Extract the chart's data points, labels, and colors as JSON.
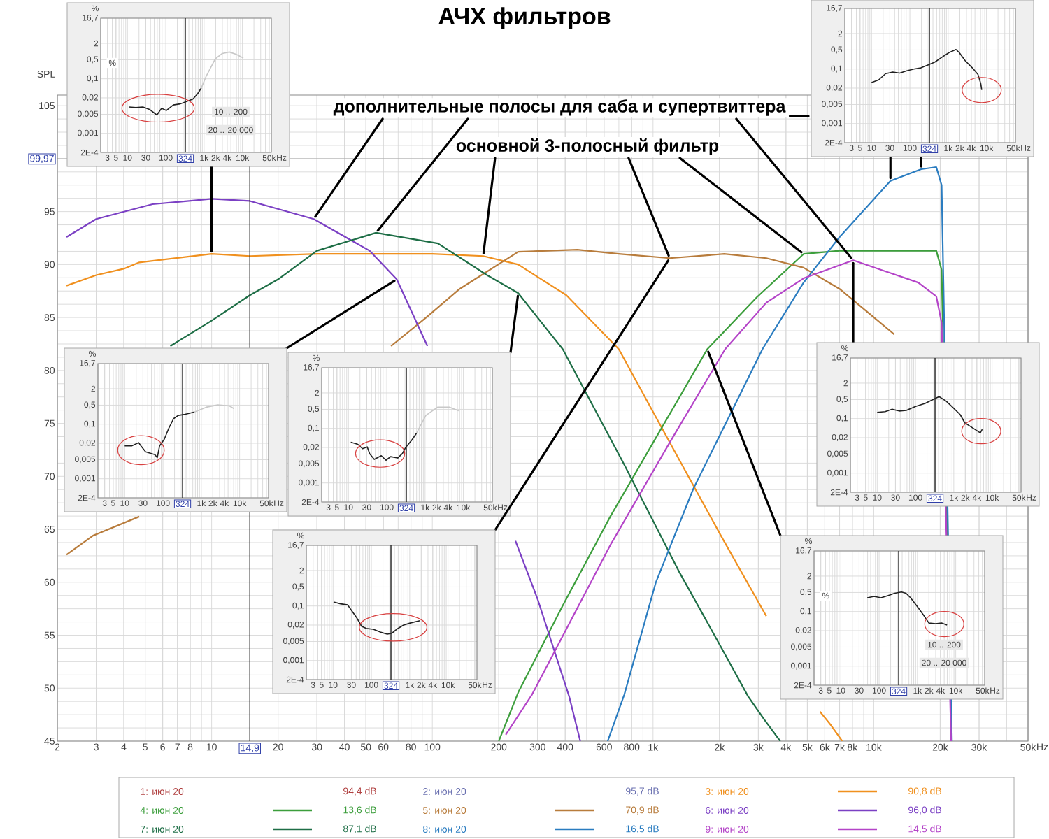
{
  "chart_data": [
    {
      "type": "line",
      "title": "АЧХ фильтров",
      "ylabel": "SPL",
      "xlabel": "Hz",
      "log": "x",
      "xlim": [
        2,
        50000
      ],
      "ylim": [
        45,
        106
      ],
      "xticks": [
        2,
        3,
        4,
        5,
        6,
        7,
        8,
        10,
        20,
        30,
        40,
        50,
        60,
        80,
        100,
        200,
        300,
        400,
        600,
        800,
        {
          "value": 1000,
          "label": "1k"
        },
        {
          "value": 2000,
          "label": "2k"
        },
        {
          "value": 3000,
          "label": "3k"
        },
        {
          "value": 4000,
          "label": "4k"
        },
        {
          "value": 5000,
          "label": "5k"
        },
        {
          "value": 6000,
          "label": "6k"
        },
        {
          "value": 7000,
          "label": "7k"
        },
        {
          "value": 8000,
          "label": "8k"
        },
        {
          "value": 10000,
          "label": "10k"
        },
        {
          "value": 20000,
          "label": "20k"
        },
        {
          "value": 30000,
          "label": "30k"
        },
        {
          "value": 50000,
          "label": "50k"
        }
      ],
      "yticks": [
        45,
        50,
        55,
        60,
        65,
        70,
        75,
        80,
        85,
        90,
        95,
        {
          "value": 100,
          "label": null
        },
        105
      ],
      "grid": true,
      "legend": "bottom",
      "ref_lines": [
        {
          "axis": "x",
          "value": 14.9,
          "label": "14,9",
          "color": "#202020"
        },
        {
          "axis": "y",
          "value": 99.97,
          "label": "99,97",
          "color": "#707070"
        }
      ],
      "annotations": [
        {
          "text": "дополнительные полосы для саба и супертвиттера",
          "x": 29,
          "y": 94.3
        },
        {
          "text": "основной 3-полосный фильтр",
          "x": 170,
          "y": 90.8
        },
        "94,4 dB",
        "95,7 dB",
        "90,8 dB",
        "13,6 dB",
        "70,9 dB",
        "96,0 dB",
        "87,1 dB",
        "16,5 dB",
        "14,5 dB"
      ],
      "series": [
        {
          "name": "1: июн 20",
          "color": "#b04040"
        },
        {
          "name": "2: июн 20",
          "color": "#6a70b0"
        },
        {
          "name": "3: июн 20",
          "color": "#f0901e",
          "x": [
            2.2,
            3,
            4,
            4.7,
            10,
            14.9,
            30,
            100,
            170,
            245,
            405,
            700,
            1190,
            2030,
            3260,
            4500,
            5700,
            6400,
            7200
          ],
          "values": [
            88.0,
            89.0,
            89.6,
            90.2,
            91.0,
            90.8,
            91.0,
            91.0,
            90.8,
            90.0,
            87.1,
            82.0,
            73.2,
            64.4,
            56.8,
            null,
            47.8,
            46.5,
            45.0
          ]
        },
        {
          "name": "4: июн 20",
          "color": "#3c9e3c",
          "x": [
            200,
            245,
            390,
            640,
            1760,
            2950,
            4810,
            7000,
            19200,
            20300,
            22500
          ],
          "values": [
            45.0,
            49.6,
            57.8,
            66.2,
            82.0,
            86.9,
            91.0,
            91.3,
            91.3,
            89.5,
            45.0
          ]
        },
        {
          "name": "5: июн 20",
          "color": "#b87c3c",
          "x": [
            2.2,
            2.9,
            4.7,
            20,
            65,
            95,
            133,
            245,
            454,
            700,
            1190,
            2100,
            3260,
            4810,
            7000,
            9900,
            12400
          ],
          "values": [
            62.6,
            64.4,
            66.2,
            null,
            82.3,
            85.1,
            87.7,
            91.2,
            91.4,
            91.0,
            90.6,
            91.0,
            90.6,
            89.7,
            87.7,
            85.1,
            83.4
          ]
        },
        {
          "name": "6: июн 20",
          "color": "#7b40c4",
          "x": [
            2.2,
            3,
            5.4,
            10,
            14.9,
            29,
            52,
            69,
            95,
            140,
            238,
            300,
            417,
            468
          ],
          "values": [
            92.6,
            94.3,
            95.7,
            96.2,
            96.0,
            94.3,
            91.3,
            88.6,
            82.3,
            null,
            63.9,
            58.4,
            49.2,
            45.0
          ]
        },
        {
          "name": "7: июн 20",
          "color": "#1e6e46",
          "x": [
            6.5,
            10,
            14.9,
            20,
            30,
            55.6,
            106,
            177,
            245,
            390,
            741,
            1320,
            2030,
            2700,
            3200,
            3770
          ],
          "values": [
            82.3,
            84.7,
            87.1,
            88.6,
            91.3,
            93.0,
            92.0,
            89.0,
            87.3,
            82.0,
            71.1,
            60.9,
            53.9,
            49.2,
            47.0,
            45.0
          ]
        },
        {
          "name": "8: июн 20",
          "color": "#2a7cc0",
          "x": [
            623,
            741,
            1030,
            1520,
            3130,
            4810,
            7000,
            11900,
            16400,
            19200,
            20300,
            22600
          ],
          "values": [
            45.0,
            49.4,
            60.0,
            68.8,
            82.0,
            88.3,
            92.6,
            97.9,
            99.0,
            99.2,
            97.5,
            45.0
          ]
        },
        {
          "name": "9: июн 20",
          "color": "#b444c8",
          "x": [
            215,
            283,
            640,
            1190,
            2120,
            3260,
            4810,
            8070,
            15900,
            19200,
            20300,
            22400
          ],
          "values": [
            45.6,
            49.4,
            63.5,
            73.2,
            82.0,
            86.4,
            88.7,
            90.4,
            88.3,
            87.0,
            84.5,
            45.0
          ]
        }
      ]
    },
    {
      "type": "line",
      "ylabel": "%",
      "xlabel": "Hz",
      "log": "xy",
      "xlim": [
        2,
        57000
      ],
      "ylim": [
        0.0002,
        16.7
      ],
      "xticks": [
        3,
        5,
        10,
        30,
        100,
        {
          "value": 1000,
          "label": "1k"
        },
        {
          "value": 2000,
          "label": "2k"
        },
        {
          "value": 4000,
          "label": "4k"
        },
        {
          "value": 10000,
          "label": "10k"
        },
        {
          "value": 50000,
          "label": "50k"
        }
      ],
      "yticks": [
        {
          "value": 0.0002,
          "label": "2E-4"
        },
        {
          "value": 0.001,
          "label": "0,001"
        },
        {
          "value": 0.005,
          "label": "0,005"
        },
        {
          "value": 0.02,
          "label": "0,02"
        },
        {
          "value": 0.1,
          "label": "0,1"
        },
        {
          "value": 0.5,
          "label": "0,5"
        },
        {
          "value": 2,
          "label": "2"
        },
        {
          "value": 16.7,
          "label": "16,7"
        }
      ],
      "grid": true,
      "ref_lines": [
        {
          "axis": "x",
          "value": 324,
          "label": "324",
          "color": "#202020"
        }
      ],
      "annotations": [
        "%",
        "10 .. 200",
        "20 .. 20 000"
      ],
      "series": [
        {
          "color": "#202020",
          "x": [
            10.9,
            16.6,
            25.2,
            38.5,
            58.6,
            77.6,
            103,
            157,
            239,
            364,
            509,
            675,
            845
          ],
          "values": [
            0.0093,
            0.0089,
            0.0093,
            0.0074,
            0.0047,
            0.0083,
            0.0069,
            0.011,
            0.012,
            0.015,
            0.018,
            0.028,
            0.046
          ]
        },
        {
          "color": "#c8c8c8",
          "x": [
            845,
            1120,
            1960,
            2990,
            4560,
            6950,
            10600
          ],
          "values": [
            0.046,
            0.12,
            0.54,
            0.85,
            0.96,
            0.79,
            0.58
          ]
        }
      ]
    },
    {
      "type": "line",
      "xlabel": "Hz",
      "log": "xy",
      "xlim": [
        2,
        57000
      ],
      "ylim": [
        0.0002,
        16.7
      ],
      "xticks": [
        3,
        5,
        10,
        30,
        100,
        {
          "value": 1000,
          "label": "1k"
        },
        {
          "value": 2000,
          "label": "2k"
        },
        {
          "value": 4000,
          "label": "4k"
        },
        {
          "value": 10000,
          "label": "10k"
        },
        {
          "value": 50000,
          "label": "50k"
        }
      ],
      "yticks": [
        {
          "value": 0.0002,
          "label": "2E-4"
        },
        {
          "value": 0.001,
          "label": "0,001"
        },
        {
          "value": 0.005,
          "label": "0,005"
        },
        {
          "value": 0.02,
          "label": "0,02"
        },
        {
          "value": 0.1,
          "label": "0,1"
        },
        {
          "value": 0.5,
          "label": "0,5"
        },
        {
          "value": 2,
          "label": "2"
        },
        {
          "value": 16.7,
          "label": "16,7"
        }
      ],
      "grid": true,
      "ref_lines": [
        {
          "axis": "x",
          "value": 324,
          "label": "324",
          "color": "#202020"
        }
      ],
      "series": [
        {
          "color": "#202020",
          "x": [
            10,
            15.3,
            23.3,
            35.6,
            54.3,
            82.8,
            126,
            193,
            294,
            449,
            685,
            1050,
            1600,
            1950,
            2800,
            4290,
            6000,
            7100,
            7500
          ],
          "values": [
            0.032,
            0.04,
            0.068,
            0.077,
            0.071,
            0.086,
            0.1,
            0.11,
            0.14,
            0.18,
            0.27,
            0.4,
            0.52,
            0.4,
            0.2,
            0.11,
            0.063,
            0.029,
            0.017
          ]
        }
      ]
    },
    {
      "type": "line",
      "ylabel": "%",
      "xlabel": "Hz",
      "log": "xy",
      "xlim": [
        2,
        57000
      ],
      "ylim": [
        0.0002,
        16.7
      ],
      "xticks": [
        3,
        5,
        10,
        30,
        100,
        {
          "value": 1000,
          "label": "1k"
        },
        {
          "value": 2000,
          "label": "2k"
        },
        {
          "value": 4000,
          "label": "4k"
        },
        {
          "value": 10000,
          "label": "10k"
        },
        {
          "value": 50000,
          "label": "50k"
        }
      ],
      "yticks": [
        {
          "value": 0.0002,
          "label": "2E-4"
        },
        {
          "value": 0.001,
          "label": "0,001"
        },
        {
          "value": 0.005,
          "label": "0,005"
        },
        {
          "value": 0.02,
          "label": "0,02"
        },
        {
          "value": 0.1,
          "label": "0,1"
        },
        {
          "value": 0.5,
          "label": "0,5"
        },
        {
          "value": 2,
          "label": "2"
        },
        {
          "value": 16.7,
          "label": "16,7"
        }
      ],
      "grid": true,
      "ref_lines": [
        {
          "axis": "x",
          "value": 324,
          "label": "324",
          "color": "#202020"
        }
      ],
      "series": [
        {
          "color": "#202020",
          "x": [
            10,
            15.2,
            23.2,
            26.6,
            35.2,
            46.6,
            61.6,
            70.9,
            81.5,
            108,
            143,
            189,
            250,
            380,
            665
          ],
          "values": [
            0.016,
            0.016,
            0.021,
            0.016,
            0.0097,
            0.0086,
            0.0077,
            0.0059,
            0.016,
            0.028,
            0.073,
            0.16,
            0.21,
            0.23,
            0.28
          ]
        },
        {
          "color": "#c8c8c8",
          "x": [
            665,
            1340,
            2690,
            5420,
            7160
          ],
          "values": [
            0.28,
            0.42,
            0.51,
            0.47,
            0.37
          ]
        }
      ]
    },
    {
      "type": "line",
      "ylabel": "%",
      "xlabel": "Hz",
      "log": "xy",
      "xlim": [
        2,
        57000
      ],
      "ylim": [
        0.0002,
        16.7
      ],
      "xticks": [
        3,
        5,
        10,
        30,
        100,
        {
          "value": 1000,
          "label": "1k"
        },
        {
          "value": 2000,
          "label": "2k"
        },
        {
          "value": 4000,
          "label": "4k"
        },
        {
          "value": 10000,
          "label": "10k"
        },
        {
          "value": 50000,
          "label": "50k"
        }
      ],
      "yticks": [
        {
          "value": 0.0002,
          "label": "2E-4"
        },
        {
          "value": 0.001,
          "label": "0,001"
        },
        {
          "value": 0.005,
          "label": "0,005"
        },
        {
          "value": 0.02,
          "label": "0,02"
        },
        {
          "value": 0.1,
          "label": "0,1"
        },
        {
          "value": 0.5,
          "label": "0,5"
        },
        {
          "value": 2,
          "label": "2"
        },
        {
          "value": 16.7,
          "label": "16,7"
        }
      ],
      "grid": true,
      "ref_lines": [
        {
          "axis": "x",
          "value": 324,
          "label": "324",
          "color": "#202020"
        }
      ],
      "series": [
        {
          "color": "#202020",
          "x": [
            11.5,
            17.6,
            23.3,
            30.9,
            35.6,
            47.1,
            71.9,
            95.3,
            126,
            193,
            256,
            311,
            449,
            595
          ],
          "values": [
            0.031,
            0.026,
            0.018,
            0.021,
            0.012,
            0.0073,
            0.01,
            0.0068,
            0.0092,
            0.0082,
            0.012,
            0.02,
            0.037,
            0.066
          ]
        },
        {
          "color": "#c8c8c8",
          "x": [
            595,
            1050,
            2120,
            4290,
            7520
          ],
          "values": [
            0.066,
            0.3,
            0.6,
            0.6,
            0.44
          ]
        }
      ]
    },
    {
      "type": "line",
      "ylabel": "%",
      "xlabel": "Hz",
      "log": "xy",
      "xlim": [
        2,
        57000
      ],
      "ylim": [
        0.0002,
        16.7
      ],
      "xticks": [
        3,
        5,
        10,
        30,
        100,
        {
          "value": 1000,
          "label": "1k"
        },
        {
          "value": 2000,
          "label": "2k"
        },
        {
          "value": 4000,
          "label": "4k"
        },
        {
          "value": 10000,
          "label": "10k"
        },
        {
          "value": 50000,
          "label": "50k"
        }
      ],
      "yticks": [
        {
          "value": 0.0002,
          "label": "2E-4"
        },
        {
          "value": 0.001,
          "label": "0,001"
        },
        {
          "value": 0.005,
          "label": "0,005"
        },
        {
          "value": 0.02,
          "label": "0,02"
        },
        {
          "value": 0.1,
          "label": "0,1"
        },
        {
          "value": 0.5,
          "label": "0,5"
        },
        {
          "value": 2,
          "label": "2"
        },
        {
          "value": 16.7,
          "label": "16,7"
        }
      ],
      "grid": true,
      "ref_lines": [
        {
          "axis": "x",
          "value": 324,
          "label": "324",
          "color": "#202020"
        }
      ],
      "series": [
        {
          "color": "#202020",
          "x": [
            10,
            16.1,
            24.6,
            37.6,
            57.4,
            101,
            177,
            311,
            413,
            630,
            962,
            1470,
            1940,
            2580,
            4930,
            5520
          ],
          "values": [
            0.17,
            0.18,
            0.22,
            0.19,
            0.2,
            0.28,
            0.36,
            0.53,
            0.64,
            0.44,
            0.25,
            0.14,
            0.07,
            0.054,
            0.03,
            0.04
          ]
        }
      ]
    },
    {
      "type": "line",
      "ylabel": "%",
      "xlabel": "Hz",
      "log": "xy",
      "xlim": [
        2,
        57000
      ],
      "ylim": [
        0.0002,
        16.7
      ],
      "xticks": [
        3,
        5,
        10,
        30,
        100,
        {
          "value": 1000,
          "label": "1k"
        },
        {
          "value": 2000,
          "label": "2k"
        },
        {
          "value": 4000,
          "label": "4k"
        },
        {
          "value": 10000,
          "label": "10k"
        },
        {
          "value": 50000,
          "label": "50k"
        }
      ],
      "yticks": [
        {
          "value": 0.0002,
          "label": "2E-4"
        },
        {
          "value": 0.001,
          "label": "0,001"
        },
        {
          "value": 0.005,
          "label": "0,005"
        },
        {
          "value": 0.02,
          "label": "0,02"
        },
        {
          "value": 0.1,
          "label": "0,1"
        },
        {
          "value": 0.5,
          "label": "0,5"
        },
        {
          "value": 2,
          "label": "2"
        },
        {
          "value": 16.7,
          "label": "16,7"
        }
      ],
      "grid": true,
      "ref_lines": [
        {
          "axis": "x",
          "value": 324,
          "label": "324",
          "color": "#202020"
        }
      ],
      "series": [
        {
          "color": "#202020",
          "x": [
            10.3,
            15.7,
            23.9,
            31.6,
            41.9,
            55.5,
            73.5,
            112,
            171,
            260,
            344,
            456,
            694,
            1060,
            1850
          ],
          "values": [
            0.14,
            0.12,
            0.11,
            0.063,
            0.036,
            0.018,
            0.015,
            0.014,
            0.011,
            0.0093,
            0.01,
            0.014,
            0.02,
            0.024,
            0.029
          ]
        }
      ]
    },
    {
      "type": "line",
      "ylabel": "%",
      "xlabel": "Hz",
      "log": "xy",
      "xlim": [
        2,
        57000
      ],
      "ylim": [
        0.0002,
        16.7
      ],
      "xticks": [
        3,
        5,
        10,
        30,
        100,
        {
          "value": 1000,
          "label": "1k"
        },
        {
          "value": 2000,
          "label": "2k"
        },
        {
          "value": 4000,
          "label": "4k"
        },
        {
          "value": 10000,
          "label": "10k"
        },
        {
          "value": 50000,
          "label": "50k"
        }
      ],
      "yticks": [
        {
          "value": 0.0002,
          "label": "2E-4"
        },
        {
          "value": 0.001,
          "label": "0,001"
        },
        {
          "value": 0.005,
          "label": "0,005"
        },
        {
          "value": 0.02,
          "label": "0,02"
        },
        {
          "value": 0.1,
          "label": "0,1"
        },
        {
          "value": 0.5,
          "label": "0,5"
        },
        {
          "value": 2,
          "label": "2"
        },
        {
          "value": 16.7,
          "label": "16,7"
        }
      ],
      "grid": true,
      "ref_lines": [
        {
          "axis": "x",
          "value": 324,
          "label": "324",
          "color": "#202020"
        }
      ],
      "annotations": [
        "%",
        "10 .. 200",
        "20 .. 20 000"
      ],
      "series": [
        {
          "color": "#202020",
          "x": [
            49,
            74,
            112,
            168,
            254,
            383,
            504,
            663,
            1000,
            1510,
            1990,
            2990,
            4270,
            5940
          ],
          "values": [
            0.32,
            0.36,
            0.32,
            0.38,
            0.47,
            0.52,
            0.47,
            0.32,
            0.15,
            0.068,
            0.038,
            0.036,
            0.038,
            0.032
          ]
        }
      ]
    }
  ]
}
